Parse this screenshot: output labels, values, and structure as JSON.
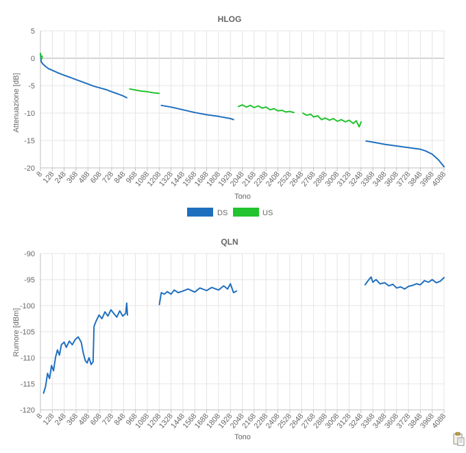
{
  "colors": {
    "ds": "#1f6fbf",
    "us": "#22c32e",
    "grid": "#e4e4e4",
    "axis": "#bfbfbf"
  },
  "icons": {
    "copy": "clipboard-icon"
  },
  "chart_data": [
    {
      "type": "line",
      "title": "HLOG",
      "xlabel": "Tono",
      "ylabel": "Attenuazione [dB]",
      "ylim": [
        -20,
        5
      ],
      "yticks": [
        5,
        0,
        -5,
        -10,
        -15,
        -20
      ],
      "xticks": [
        "8",
        "128",
        "248",
        "368",
        "488",
        "608",
        "728",
        "848",
        "968",
        "1088",
        "1208",
        "1328",
        "1448",
        "1568",
        "1688",
        "1808",
        "1928",
        "2048",
        "2168",
        "2288",
        "2408",
        "2528",
        "2648",
        "2768",
        "2888",
        "3008",
        "3128",
        "3248",
        "3368",
        "3488",
        "3608",
        "3728",
        "3848",
        "3968",
        "4088"
      ],
      "xlim": [
        8,
        4088
      ],
      "grid": true,
      "legend_position": "bottom",
      "series": [
        {
          "name": "DS",
          "color": "#1f6fbf",
          "segments": [
            [
              [
                8,
                0.8
              ],
              [
                15,
                -0.6
              ],
              [
                30,
                -1.0
              ],
              [
                60,
                -1.5
              ],
              [
                90,
                -1.9
              ],
              [
                128,
                -2.2
              ],
              [
                190,
                -2.7
              ],
              [
                248,
                -3.1
              ],
              [
                310,
                -3.5
              ],
              [
                368,
                -3.9
              ],
              [
                430,
                -4.3
              ],
              [
                488,
                -4.7
              ],
              [
                548,
                -5.1
              ],
              [
                608,
                -5.4
              ],
              [
                668,
                -5.7
              ],
              [
                728,
                -6.1
              ],
              [
                790,
                -6.5
              ],
              [
                848,
                -6.9
              ],
              [
                880,
                -7.2
              ]
            ],
            [
              [
                1230,
                -8.6
              ],
              [
                1328,
                -8.9
              ],
              [
                1448,
                -9.4
              ],
              [
                1568,
                -9.9
              ],
              [
                1688,
                -10.3
              ],
              [
                1808,
                -10.6
              ],
              [
                1928,
                -11.0
              ],
              [
                1960,
                -11.2
              ]
            ],
            [
              [
                3300,
                -15.1
              ],
              [
                3368,
                -15.3
              ],
              [
                3488,
                -15.7
              ],
              [
                3608,
                -16.0
              ],
              [
                3728,
                -16.3
              ],
              [
                3848,
                -16.6
              ],
              [
                3900,
                -16.9
              ],
              [
                3968,
                -17.5
              ],
              [
                4030,
                -18.5
              ],
              [
                4088,
                -19.8
              ]
            ]
          ]
        },
        {
          "name": "US",
          "color": "#22c32e",
          "segments": [
            [
              [
                8,
                0.9
              ],
              [
                20,
                -0.2
              ],
              [
                25,
                0.4
              ]
            ],
            [
              [
                910,
                -5.6
              ],
              [
                968,
                -5.8
              ],
              [
                1028,
                -6.0
              ],
              [
                1088,
                -6.1
              ],
              [
                1148,
                -6.3
              ],
              [
                1208,
                -6.4
              ]
            ],
            [
              [
                2010,
                -8.8
              ],
              [
                2048,
                -8.5
              ],
              [
                2090,
                -8.9
              ],
              [
                2130,
                -8.6
              ],
              [
                2168,
                -9.0
              ],
              [
                2210,
                -8.7
              ],
              [
                2250,
                -9.1
              ],
              [
                2288,
                -8.9
              ],
              [
                2330,
                -9.4
              ],
              [
                2370,
                -9.2
              ],
              [
                2408,
                -9.6
              ],
              [
                2450,
                -9.5
              ],
              [
                2490,
                -9.8
              ],
              [
                2528,
                -9.7
              ],
              [
                2570,
                -9.9
              ]
            ],
            [
              [
                2660,
                -10.0
              ],
              [
                2700,
                -10.4
              ],
              [
                2740,
                -10.2
              ],
              [
                2768,
                -10.7
              ],
              [
                2810,
                -10.5
              ],
              [
                2850,
                -11.2
              ],
              [
                2888,
                -10.9
              ],
              [
                2930,
                -11.3
              ],
              [
                2970,
                -11.0
              ],
              [
                3008,
                -11.5
              ],
              [
                3050,
                -11.2
              ],
              [
                3090,
                -11.6
              ],
              [
                3128,
                -11.3
              ],
              [
                3170,
                -11.9
              ],
              [
                3200,
                -11.4
              ],
              [
                3230,
                -12.5
              ],
              [
                3250,
                -11.6
              ]
            ]
          ]
        }
      ]
    },
    {
      "type": "line",
      "title": "QLN",
      "xlabel": "Tono",
      "ylabel": "Rumore [dBm]",
      "ylim": [
        -120,
        -90
      ],
      "yticks": [
        -90,
        -95,
        -100,
        -105,
        -110,
        -115,
        -120
      ],
      "xticks": [
        "8",
        "128",
        "248",
        "368",
        "488",
        "608",
        "728",
        "848",
        "968",
        "1088",
        "1208",
        "1328",
        "1448",
        "1568",
        "1688",
        "1808",
        "1928",
        "2048",
        "2168",
        "2288",
        "2408",
        "2528",
        "2648",
        "2768",
        "2888",
        "3008",
        "3128",
        "3248",
        "3368",
        "3488",
        "3608",
        "3728",
        "3848",
        "3968",
        "4088"
      ],
      "xlim": [
        8,
        4088
      ],
      "grid": true,
      "legend_position": "none",
      "series": [
        {
          "color": "#1f6fbf",
          "segments": [
            [
              [
                40,
                -116.8
              ],
              [
                60,
                -115.5
              ],
              [
                80,
                -113.0
              ],
              [
                100,
                -114.0
              ],
              [
                120,
                -111.5
              ],
              [
                140,
                -112.5
              ],
              [
                160,
                -110.0
              ],
              [
                180,
                -108.5
              ],
              [
                200,
                -109.5
              ],
              [
                220,
                -107.5
              ],
              [
                248,
                -107.0
              ],
              [
                270,
                -108.0
              ],
              [
                300,
                -106.8
              ],
              [
                330,
                -107.5
              ],
              [
                360,
                -106.5
              ],
              [
                390,
                -106.0
              ],
              [
                420,
                -107.0
              ],
              [
                440,
                -109.0
              ],
              [
                460,
                -110.5
              ],
              [
                480,
                -111.0
              ],
              [
                500,
                -110.0
              ],
              [
                520,
                -111.3
              ],
              [
                540,
                -110.8
              ],
              [
                550,
                -104.0
              ],
              [
                570,
                -103.0
              ],
              [
                600,
                -101.8
              ],
              [
                630,
                -102.5
              ],
              [
                660,
                -101.2
              ],
              [
                690,
                -102.0
              ],
              [
                720,
                -100.8
              ],
              [
                750,
                -101.5
              ],
              [
                780,
                -102.2
              ],
              [
                810,
                -101.0
              ],
              [
                840,
                -102.0
              ],
              [
                870,
                -101.5
              ],
              [
                880,
                -99.5
              ],
              [
                888,
                -101.8
              ]
            ],
            [
              [
                1210,
                -99.8
              ],
              [
                1230,
                -97.5
              ],
              [
                1260,
                -97.8
              ],
              [
                1290,
                -97.3
              ],
              [
                1328,
                -97.8
              ],
              [
                1360,
                -97.0
              ],
              [
                1400,
                -97.5
              ],
              [
                1448,
                -97.2
              ],
              [
                1500,
                -96.8
              ],
              [
                1568,
                -97.4
              ],
              [
                1620,
                -96.6
              ],
              [
                1688,
                -97.1
              ],
              [
                1740,
                -96.5
              ],
              [
                1808,
                -97.0
              ],
              [
                1860,
                -96.2
              ],
              [
                1900,
                -96.8
              ],
              [
                1928,
                -95.8
              ],
              [
                1960,
                -97.5
              ],
              [
                1990,
                -97.2
              ]
            ],
            [
              [
                3290,
                -96.0
              ],
              [
                3320,
                -95.2
              ],
              [
                3350,
                -94.5
              ],
              [
                3368,
                -95.5
              ],
              [
                3400,
                -95.0
              ],
              [
                3440,
                -95.8
              ],
              [
                3488,
                -95.6
              ],
              [
                3530,
                -96.2
              ],
              [
                3570,
                -95.9
              ],
              [
                3608,
                -96.6
              ],
              [
                3650,
                -96.4
              ],
              [
                3690,
                -96.8
              ],
              [
                3728,
                -96.3
              ],
              [
                3770,
                -96.1
              ],
              [
                3810,
                -95.8
              ],
              [
                3848,
                -96.0
              ],
              [
                3890,
                -95.2
              ],
              [
                3930,
                -95.5
              ],
              [
                3968,
                -95.0
              ],
              [
                4010,
                -95.6
              ],
              [
                4050,
                -95.3
              ],
              [
                4088,
                -94.6
              ]
            ]
          ]
        }
      ]
    }
  ]
}
